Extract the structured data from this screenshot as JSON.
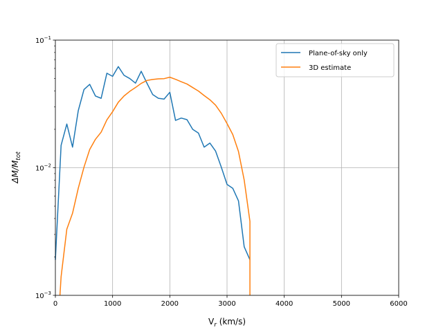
{
  "chart_data": {
    "type": "line",
    "title": "",
    "xlabel_main": "V",
    "xlabel_sub": "r",
    "xlabel_unit": " (km/s)",
    "ylabel": "ΔM/M",
    "ylabel_sub": "tot",
    "xlim": [
      0,
      6000
    ],
    "ylim": [
      0.001,
      0.1
    ],
    "yscale": "log",
    "grid": true,
    "legend_position": "top-right",
    "x_ticks": [
      {
        "value": 0,
        "label": "0"
      },
      {
        "value": 1000,
        "label": "1000"
      },
      {
        "value": 2000,
        "label": "2000"
      },
      {
        "value": 3000,
        "label": "3000"
      },
      {
        "value": 4000,
        "label": "4000"
      },
      {
        "value": 5000,
        "label": "5000"
      },
      {
        "value": 6000,
        "label": "6000"
      }
    ],
    "y_ticks": [
      {
        "value": 0.001,
        "base": "10",
        "exp": "−3"
      },
      {
        "value": 0.01,
        "base": "10",
        "exp": "−2"
      },
      {
        "value": 0.1,
        "base": "10",
        "exp": "−1"
      }
    ],
    "series": [
      {
        "name": "Plane-of-sky only",
        "color": "#1f77b4",
        "x": [
          0,
          100,
          200,
          300,
          400,
          500,
          600,
          700,
          800,
          900,
          1000,
          1100,
          1200,
          1300,
          1400,
          1500,
          1600,
          1700,
          1800,
          1900,
          2000,
          2100,
          2200,
          2300,
          2400,
          2500,
          2600,
          2700,
          2800,
          2900,
          3000,
          3100,
          3200,
          3300,
          3400
        ],
        "y": [
          0.0019,
          0.015,
          0.022,
          0.0145,
          0.028,
          0.041,
          0.045,
          0.0365,
          0.035,
          0.055,
          0.052,
          0.062,
          0.053,
          0.05,
          0.046,
          0.057,
          0.046,
          0.0375,
          0.035,
          0.0345,
          0.039,
          0.0235,
          0.0245,
          0.0238,
          0.02,
          0.0187,
          0.0145,
          0.0156,
          0.0135,
          0.0101,
          0.0074,
          0.0069,
          0.0055,
          0.0024,
          0.0019
        ]
      },
      {
        "name": "3D estimate",
        "color": "#ff7f0e",
        "x": [
          80,
          100,
          200,
          300,
          400,
          500,
          600,
          700,
          800,
          900,
          1000,
          1100,
          1200,
          1300,
          1400,
          1500,
          1600,
          1700,
          1800,
          1900,
          2000,
          2100,
          2200,
          2300,
          2400,
          2500,
          2600,
          2700,
          2800,
          2900,
          3000,
          3100,
          3200,
          3300,
          3400,
          3400
        ],
        "y": [
          0.001,
          0.0014,
          0.0033,
          0.0044,
          0.0069,
          0.0101,
          0.0139,
          0.0167,
          0.019,
          0.0237,
          0.0275,
          0.0326,
          0.0365,
          0.0397,
          0.0425,
          0.0458,
          0.0483,
          0.0492,
          0.0497,
          0.0499,
          0.0512,
          0.0493,
          0.0472,
          0.0453,
          0.0425,
          0.0399,
          0.0368,
          0.0341,
          0.0309,
          0.0267,
          0.0222,
          0.0182,
          0.0134,
          0.008,
          0.0038,
          0.001
        ]
      }
    ]
  }
}
